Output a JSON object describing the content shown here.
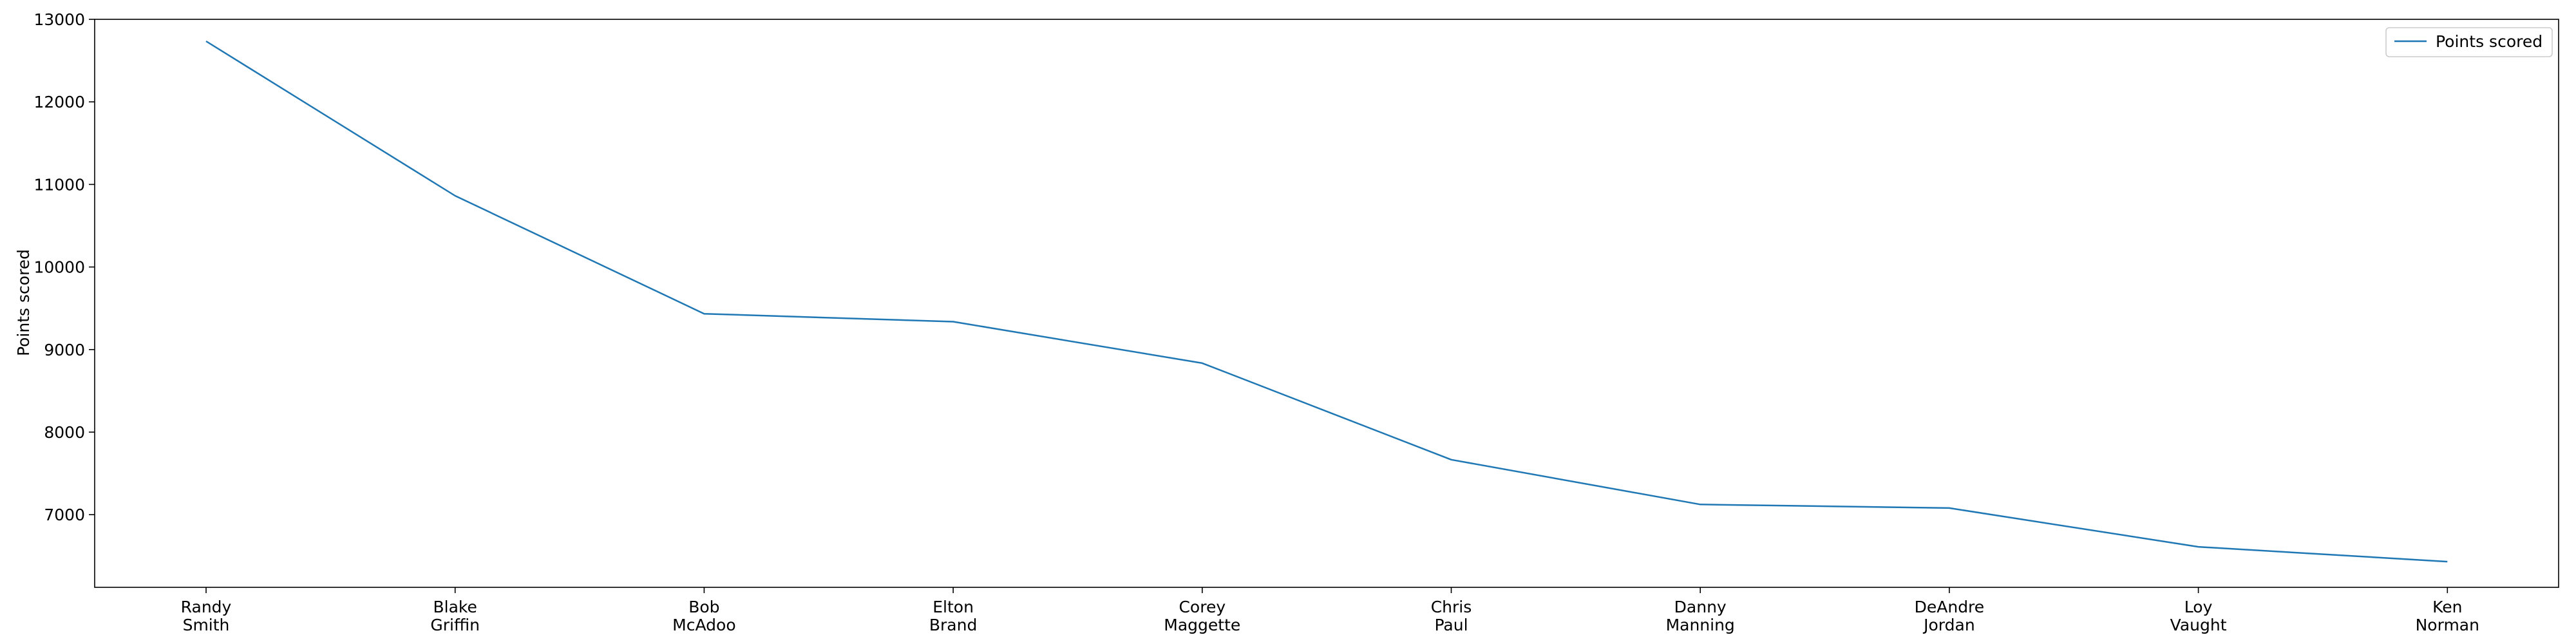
{
  "chart_data": {
    "type": "line",
    "categories": [
      [
        "Randy",
        "Smith"
      ],
      [
        "Blake",
        "Griffin"
      ],
      [
        "Bob",
        "McAdoo"
      ],
      [
        "Elton",
        "Brand"
      ],
      [
        "Corey",
        "Maggette"
      ],
      [
        "Chris",
        "Paul"
      ],
      [
        "Danny",
        "Manning"
      ],
      [
        "DeAndre",
        "Jordan"
      ],
      [
        "Loy",
        "Vaught"
      ],
      [
        "Ken",
        "Norman"
      ]
    ],
    "series": [
      {
        "name": "Points scored",
        "values": [
          12735,
          10863,
          9434,
          9338,
          8835,
          7666,
          7124,
          7080,
          6611,
          6431
        ],
        "color": "#1f77b4"
      }
    ],
    "title": "",
    "xlabel": "",
    "ylabel": "Points scored",
    "ylim": [
      6120,
      13000
    ],
    "yticks": [
      7000,
      8000,
      9000,
      10000,
      11000,
      12000,
      13000
    ],
    "grid": false,
    "legend": "top-right"
  }
}
